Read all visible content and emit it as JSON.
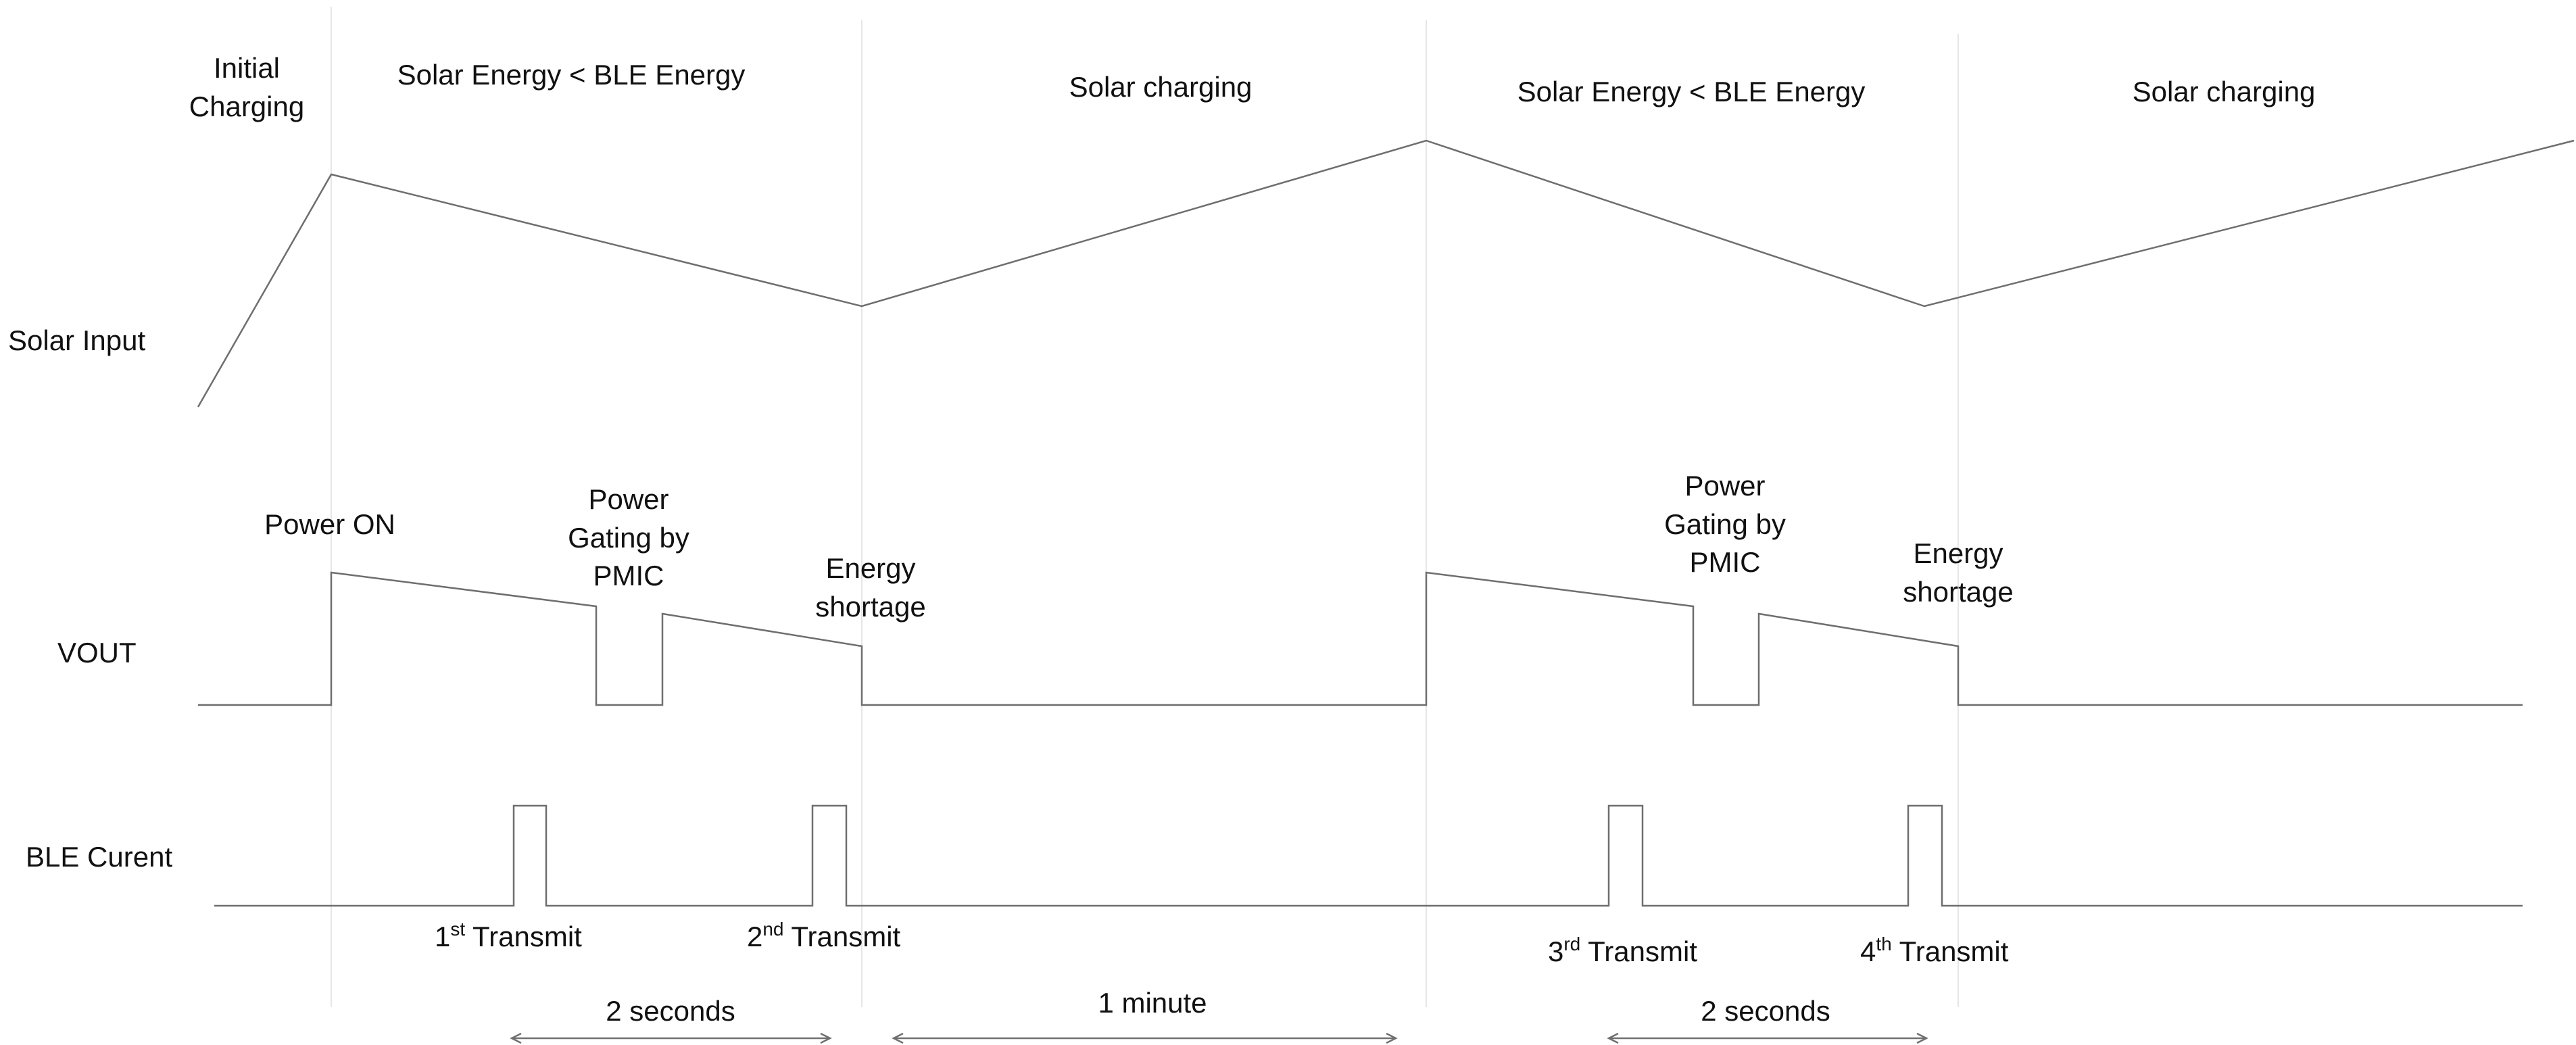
{
  "phases": {
    "initial_line1": "Initial",
    "initial_line2": "Charging",
    "deficit_1": "Solar Energy < BLE Energy",
    "charging_1": "Solar charging",
    "deficit_2": "Solar Energy < BLE Energy",
    "charging_2": "Solar charging"
  },
  "signals": {
    "solar_input": "Solar Input",
    "vout": "VOUT",
    "ble_current": "BLE Curent"
  },
  "events": {
    "power_on": "Power ON",
    "gating_1": [
      "Power",
      "Gating by",
      "PMIC"
    ],
    "shortage_1": [
      "Energy",
      "shortage"
    ],
    "gating_2": [
      "Power",
      "Gating by",
      "PMIC"
    ],
    "shortage_2": [
      "Energy",
      "shortage"
    ]
  },
  "transmits": [
    {
      "num": "1",
      "sup": "st",
      "text": " Transmit"
    },
    {
      "num": "2",
      "sup": "nd",
      "text": " Transmit"
    },
    {
      "num": "3",
      "sup": "rd",
      "text": " Transmit"
    },
    {
      "num": "4",
      "sup": "th",
      "text": " Transmit"
    }
  ],
  "intervals": {
    "first": "2 seconds",
    "middle": "1 minute",
    "second": "2 seconds"
  },
  "colors": {
    "trace": "#6e6e6e",
    "divider": "#e6e6e6",
    "text": "#111111"
  }
}
